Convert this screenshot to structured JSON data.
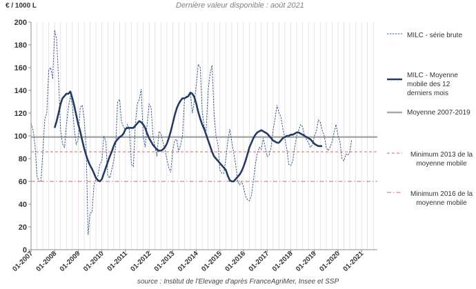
{
  "header": {
    "unit_label": "€ / 1000 L",
    "subtitle": "Dernière valeur disponible : août 2021"
  },
  "footer": {
    "source": "source : Institut de l'Elevage d'après FranceAgriMer, Insee et SSP"
  },
  "chart_data": {
    "type": "line",
    "ylim": [
      0,
      200
    ],
    "yticks": [
      0,
      20,
      40,
      60,
      80,
      100,
      120,
      140,
      160,
      180,
      200
    ],
    "x_tick_labels": [
      "01-2007",
      "01-2008",
      "01-2009",
      "01-2010",
      "01-2011",
      "01-2012",
      "01-2013",
      "01-2014",
      "01-2015",
      "01-2016",
      "01-2017",
      "01-2018",
      "01-2019",
      "01-2020",
      "01-2021"
    ],
    "xlim_months": 176,
    "grid": "vertical",
    "legend_position": "right",
    "colors": {
      "raw": "#3d5a8a",
      "moving_average": "#243a63",
      "mean": "#a6a6a6",
      "min2013": "#e06060",
      "min2016": "#e06060"
    },
    "series": [
      {
        "name": "MILC - série brute",
        "style": "dotted",
        "points": [
          [
            0,
            111
          ],
          [
            1,
            105
          ],
          [
            2,
            92
          ],
          [
            3,
            65
          ],
          [
            4,
            60
          ],
          [
            5,
            60
          ],
          [
            6,
            85
          ],
          [
            7,
            115
          ],
          [
            8,
            120
          ],
          [
            9,
            158
          ],
          [
            10,
            160
          ],
          [
            11,
            150
          ],
          [
            12,
            193
          ],
          [
            13,
            185
          ],
          [
            14,
            150
          ],
          [
            15,
            105
          ],
          [
            16,
            93
          ],
          [
            17,
            90
          ],
          [
            18,
            110
          ],
          [
            19,
            125
          ],
          [
            20,
            135
          ],
          [
            21,
            127
          ],
          [
            22,
            105
          ],
          [
            23,
            92
          ],
          [
            24,
            98
          ],
          [
            25,
            125
          ],
          [
            26,
            127
          ],
          [
            27,
            115
          ],
          [
            28,
            90
          ],
          [
            29,
            13
          ],
          [
            30,
            32
          ],
          [
            31,
            33
          ],
          [
            32,
            57
          ],
          [
            33,
            62
          ],
          [
            34,
            65
          ],
          [
            35,
            75
          ],
          [
            36,
            78
          ],
          [
            37,
            100
          ],
          [
            38,
            95
          ],
          [
            39,
            65
          ],
          [
            40,
            63
          ],
          [
            41,
            70
          ],
          [
            42,
            78
          ],
          [
            43,
            90
          ],
          [
            44,
            130
          ],
          [
            45,
            132
          ],
          [
            46,
            112
          ],
          [
            47,
            108
          ],
          [
            48,
            105
          ],
          [
            49,
            110
          ],
          [
            50,
            105
          ],
          [
            51,
            75
          ],
          [
            52,
            73
          ],
          [
            53,
            110
          ],
          [
            54,
            128
          ],
          [
            55,
            132
          ],
          [
            56,
            141
          ],
          [
            57,
            100
          ],
          [
            58,
            90
          ],
          [
            59,
            110
          ],
          [
            60,
            128
          ],
          [
            61,
            125
          ],
          [
            62,
            100
          ],
          [
            63,
            90
          ],
          [
            64,
            82
          ],
          [
            65,
            104
          ],
          [
            66,
            102
          ],
          [
            67,
            95
          ],
          [
            68,
            88
          ],
          [
            69,
            80
          ],
          [
            70,
            72
          ],
          [
            71,
            68
          ],
          [
            72,
            87
          ],
          [
            73,
            96
          ],
          [
            74,
            97
          ],
          [
            75,
            86
          ],
          [
            76,
            92
          ],
          [
            77,
            100
          ],
          [
            78,
            133
          ],
          [
            79,
            135
          ],
          [
            80,
            134
          ],
          [
            81,
            138
          ],
          [
            82,
            120
          ],
          [
            83,
            130
          ],
          [
            84,
            145
          ],
          [
            85,
            163
          ],
          [
            86,
            160
          ],
          [
            87,
            122
          ],
          [
            88,
            108
          ],
          [
            89,
            105
          ],
          [
            90,
            140
          ],
          [
            91,
            155
          ],
          [
            92,
            162
          ],
          [
            93,
            120
          ],
          [
            94,
            100
          ],
          [
            95,
            92
          ],
          [
            96,
            70
          ],
          [
            97,
            67
          ],
          [
            98,
            67
          ],
          [
            99,
            80
          ],
          [
            100,
            95
          ],
          [
            101,
            106
          ],
          [
            102,
            95
          ],
          [
            103,
            85
          ],
          [
            104,
            75
          ],
          [
            105,
            60
          ],
          [
            106,
            57
          ],
          [
            107,
            60
          ],
          [
            108,
            55
          ],
          [
            109,
            47
          ],
          [
            110,
            44
          ],
          [
            111,
            43
          ],
          [
            112,
            48
          ],
          [
            113,
            60
          ],
          [
            114,
            75
          ],
          [
            115,
            85
          ],
          [
            116,
            90
          ],
          [
            117,
            88
          ],
          [
            118,
            98
          ],
          [
            119,
            90
          ],
          [
            120,
            82
          ],
          [
            121,
            83
          ],
          [
            122,
            90
          ],
          [
            123,
            105
          ],
          [
            124,
            115
          ],
          [
            125,
            127
          ],
          [
            126,
            120
          ],
          [
            127,
            117
          ],
          [
            128,
            106
          ],
          [
            129,
            98
          ],
          [
            130,
            88
          ],
          [
            131,
            75
          ],
          [
            132,
            74
          ],
          [
            133,
            78
          ],
          [
            134,
            90
          ],
          [
            135,
            100
          ],
          [
            136,
            105
          ],
          [
            137,
            110
          ],
          [
            138,
            108
          ],
          [
            139,
            100
          ],
          [
            140,
            97
          ],
          [
            141,
            94
          ],
          [
            142,
            90
          ],
          [
            143,
            92
          ],
          [
            144,
            100
          ],
          [
            145,
            104
          ],
          [
            146,
            114
          ],
          [
            147,
            112
          ],
          [
            148,
            105
          ],
          [
            149,
            100
          ],
          [
            150,
            90
          ],
          [
            151,
            87
          ],
          [
            152,
            90
          ],
          [
            153,
            95
          ],
          [
            154,
            103
          ],
          [
            155,
            110
          ],
          [
            156,
            100
          ],
          [
            157,
            95
          ],
          [
            158,
            80
          ],
          [
            159,
            78
          ],
          [
            160,
            84
          ],
          [
            161,
            83
          ],
          [
            162,
            86
          ],
          [
            163,
            97
          ]
        ]
      },
      {
        "name": "MILC - Moyenne mobile des 12 derniers mois",
        "style": "solid-thick",
        "points": [
          [
            12,
            107
          ],
          [
            13,
            113
          ],
          [
            14,
            120
          ],
          [
            15,
            128
          ],
          [
            16,
            133
          ],
          [
            17,
            135
          ],
          [
            18,
            137
          ],
          [
            19,
            137
          ],
          [
            20,
            139
          ],
          [
            21,
            133
          ],
          [
            22,
            126
          ],
          [
            23,
            118
          ],
          [
            24,
            110
          ],
          [
            25,
            104
          ],
          [
            26,
            96
          ],
          [
            27,
            89
          ],
          [
            28,
            83
          ],
          [
            29,
            78
          ],
          [
            30,
            74
          ],
          [
            31,
            71
          ],
          [
            32,
            67
          ],
          [
            33,
            63
          ],
          [
            34,
            61
          ],
          [
            35,
            60
          ],
          [
            36,
            62
          ],
          [
            37,
            67
          ],
          [
            38,
            72
          ],
          [
            39,
            77
          ],
          [
            40,
            82
          ],
          [
            41,
            86
          ],
          [
            42,
            91
          ],
          [
            43,
            95
          ],
          [
            44,
            97
          ],
          [
            45,
            99
          ],
          [
            46,
            100
          ],
          [
            47,
            102
          ],
          [
            48,
            106
          ],
          [
            49,
            107
          ],
          [
            50,
            107
          ],
          [
            51,
            107
          ],
          [
            52,
            107
          ],
          [
            53,
            109
          ],
          [
            54,
            111
          ],
          [
            55,
            113
          ],
          [
            56,
            112
          ],
          [
            57,
            110
          ],
          [
            58,
            107
          ],
          [
            59,
            102
          ],
          [
            60,
            98
          ],
          [
            61,
            95
          ],
          [
            62,
            92
          ],
          [
            63,
            90
          ],
          [
            64,
            88
          ],
          [
            65,
            87
          ],
          [
            66,
            87
          ],
          [
            67,
            88
          ],
          [
            68,
            90
          ],
          [
            69,
            93
          ],
          [
            70,
            98
          ],
          [
            71,
            104
          ],
          [
            72,
            111
          ],
          [
            73,
            118
          ],
          [
            74,
            124
          ],
          [
            75,
            128
          ],
          [
            76,
            131
          ],
          [
            77,
            133
          ],
          [
            78,
            133
          ],
          [
            79,
            134
          ],
          [
            80,
            135
          ],
          [
            81,
            138
          ],
          [
            82,
            137
          ],
          [
            83,
            134
          ],
          [
            84,
            128
          ],
          [
            85,
            121
          ],
          [
            86,
            115
          ],
          [
            87,
            110
          ],
          [
            88,
            106
          ],
          [
            89,
            101
          ],
          [
            90,
            96
          ],
          [
            91,
            91
          ],
          [
            92,
            86
          ],
          [
            93,
            82
          ],
          [
            94,
            80
          ],
          [
            95,
            78
          ],
          [
            96,
            76
          ],
          [
            97,
            74
          ],
          [
            98,
            72
          ],
          [
            99,
            70
          ],
          [
            100,
            65
          ],
          [
            101,
            61
          ],
          [
            102,
            60
          ],
          [
            103,
            60
          ],
          [
            104,
            62
          ],
          [
            105,
            64
          ],
          [
            106,
            66
          ],
          [
            107,
            69
          ],
          [
            108,
            73
          ],
          [
            109,
            78
          ],
          [
            110,
            84
          ],
          [
            111,
            90
          ],
          [
            112,
            94
          ],
          [
            113,
            98
          ],
          [
            114,
            101
          ],
          [
            115,
            103
          ],
          [
            116,
            104
          ],
          [
            117,
            105
          ],
          [
            118,
            104
          ],
          [
            119,
            103
          ],
          [
            120,
            102
          ],
          [
            121,
            100
          ],
          [
            122,
            98
          ],
          [
            123,
            96
          ],
          [
            124,
            95
          ],
          [
            125,
            94
          ],
          [
            126,
            94
          ],
          [
            127,
            96
          ],
          [
            128,
            98
          ],
          [
            129,
            99
          ],
          [
            130,
            100
          ],
          [
            131,
            100
          ],
          [
            132,
            101
          ],
          [
            133,
            101
          ],
          [
            134,
            102
          ],
          [
            135,
            103
          ],
          [
            136,
            103
          ],
          [
            137,
            102
          ],
          [
            138,
            101
          ],
          [
            139,
            100
          ],
          [
            140,
            99
          ],
          [
            141,
            98
          ],
          [
            142,
            97
          ],
          [
            143,
            95
          ],
          [
            144,
            93
          ],
          [
            145,
            92
          ],
          [
            146,
            91
          ],
          [
            147,
            91
          ],
          [
            148,
            91
          ]
        ]
      },
      {
        "name": "Moyenne 2007-2019",
        "style": "solid-gray",
        "value": 99
      },
      {
        "name": "Minimum 2013 de la moyenne mobile",
        "style": "dashed-red",
        "value": 86
      },
      {
        "name": "Minimum 2016 de la moyenne mobile",
        "style": "dashdot-red",
        "value": 60
      }
    ]
  }
}
